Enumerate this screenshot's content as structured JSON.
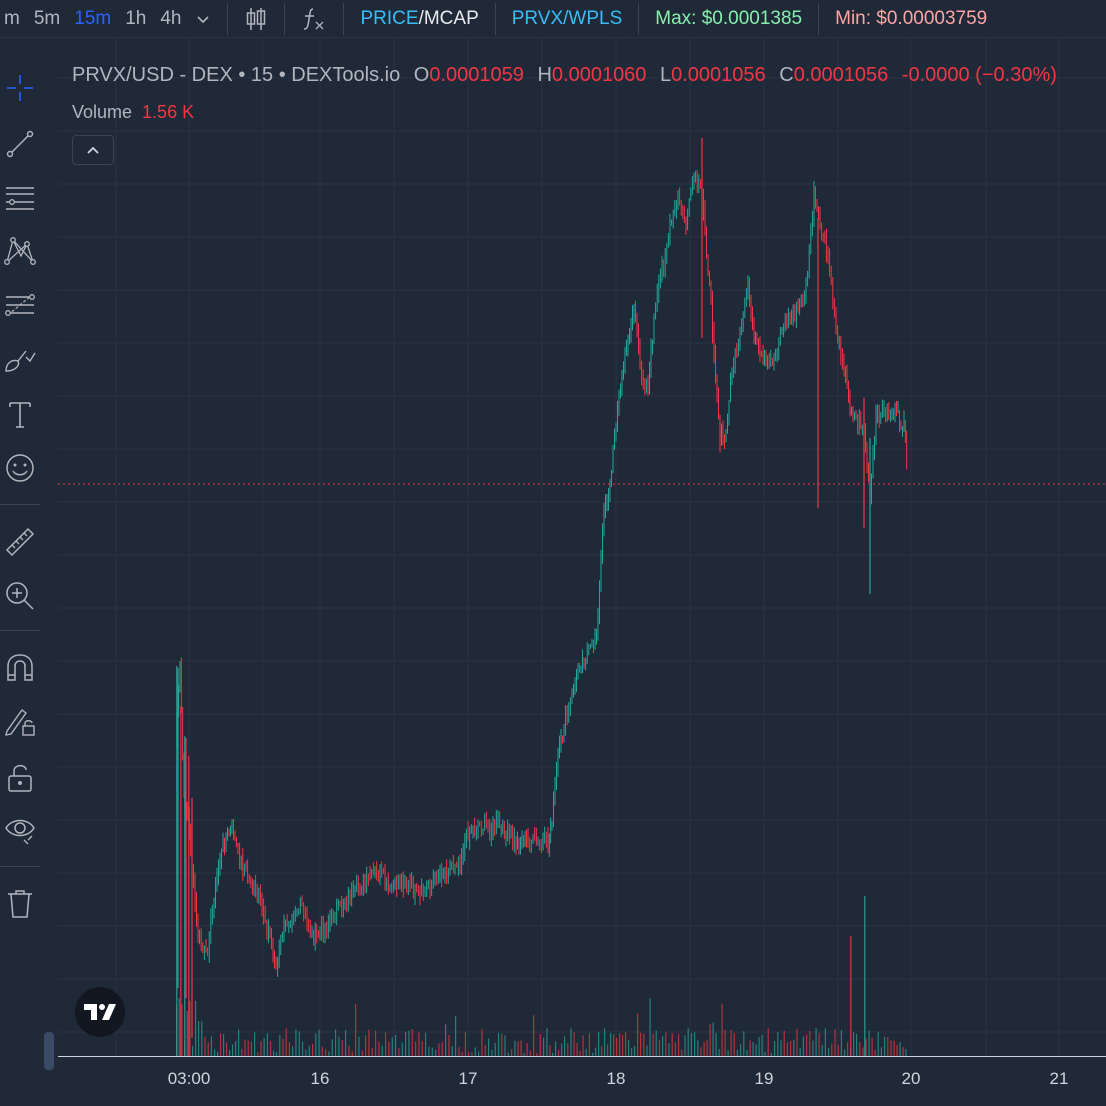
{
  "toolbar": {
    "timeframes": [
      "m",
      "5m",
      "15m",
      "1h",
      "4h"
    ],
    "active_timeframe": "15m",
    "price_label": "PRICE",
    "slash": "/",
    "mcap_label": "MCAP",
    "pair_label": "PRVX/WPLS",
    "max_label": "Max: $0.0001385",
    "min_label": "Min: $0.00003759"
  },
  "legend": {
    "symbol": "PRVX/USD - DEX • 15 • DEXTools.io",
    "o_key": "O",
    "o_val": "0.0001059",
    "h_key": "H",
    "h_val": "0.0001060",
    "l_key": "L",
    "l_val": "0.0001056",
    "c_key": "C",
    "c_val": "0.0001056",
    "change": "-0.0000 (−0.30%)",
    "volume_label": "Volume",
    "volume_value": "1.56 K"
  },
  "xaxis": {
    "labels": [
      "03:00",
      "16",
      "17",
      "18",
      "19",
      "20",
      "21"
    ]
  },
  "colors": {
    "up": "#26a69a",
    "down": "#f23645",
    "bg": "#1f2937",
    "grid": "#2b3444"
  },
  "sidebar_icons": [
    "crosshair-icon",
    "trend-line-icon",
    "horizontal-lines-icon",
    "pattern-icon",
    "fib-icon",
    "brush-icon",
    "text-icon",
    "emoji-icon",
    "ruler-icon",
    "zoom-in-icon",
    "magnet-icon",
    "lock-draw-icon",
    "lock-icon",
    "eye-icon",
    "trash-icon"
  ]
}
